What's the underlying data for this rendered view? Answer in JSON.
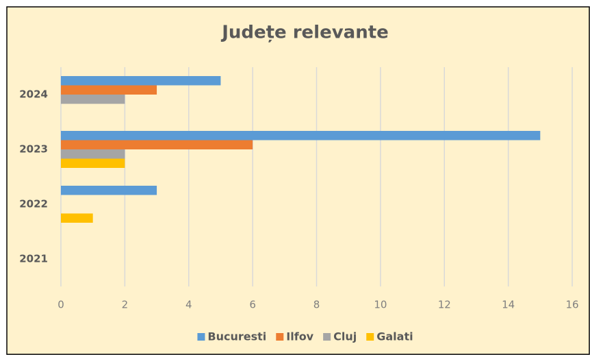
{
  "chart_data": {
    "type": "bar",
    "orientation": "horizontal",
    "title": "Județe relevante",
    "categories": [
      "2021",
      "2022",
      "2023",
      "2024"
    ],
    "series": [
      {
        "name": "Bucuresti",
        "color": "#5b9bd5",
        "values": [
          0,
          3,
          15,
          5
        ]
      },
      {
        "name": "Ilfov",
        "color": "#ed7d31",
        "values": [
          0,
          0,
          6,
          3
        ]
      },
      {
        "name": "Cluj",
        "color": "#a5a5a5",
        "values": [
          0,
          0,
          2,
          2
        ]
      },
      {
        "name": "Galati",
        "color": "#ffc000",
        "values": [
          0,
          1,
          2,
          0
        ]
      }
    ],
    "xlim": [
      0,
      16
    ],
    "xticks": [
      0,
      2,
      4,
      6,
      8,
      10,
      12,
      14,
      16
    ],
    "grid": true,
    "legend": "bottom"
  }
}
